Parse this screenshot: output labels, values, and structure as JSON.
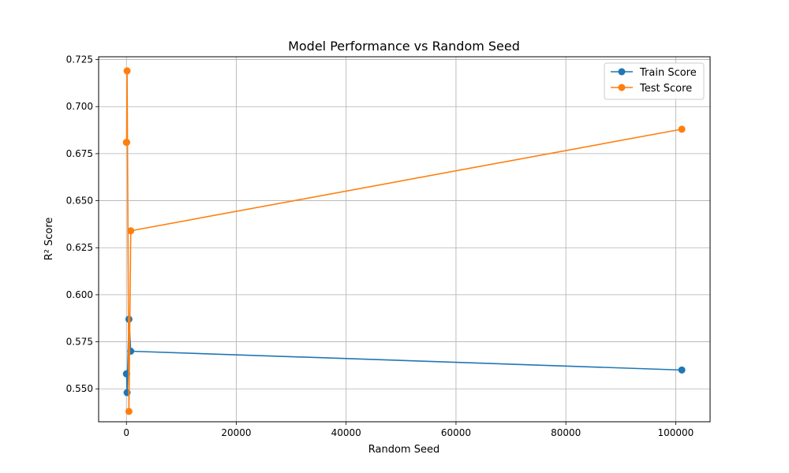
{
  "chart_data": {
    "type": "line",
    "title": "Model Performance vs Random Seed",
    "xlabel": "Random Seed",
    "ylabel": "R² Score",
    "xlim": [
      -5060,
      106260
    ],
    "ylim": [
      0.5325,
      0.7265
    ],
    "xticks": [
      0,
      20000,
      40000,
      60000,
      80000,
      100000
    ],
    "yticks": [
      0.55,
      0.575,
      0.6,
      0.625,
      0.65,
      0.675,
      0.7,
      0.725
    ],
    "grid": true,
    "legend_position": "top-right",
    "series": [
      {
        "name": "Train Score",
        "color": "#1f77b4",
        "x": [
          0,
          42,
          123,
          456,
          789,
          101112
        ],
        "y": [
          0.558,
          0.558,
          0.548,
          0.587,
          0.57,
          0.56
        ]
      },
      {
        "name": "Test Score",
        "color": "#ff7f0e",
        "x": [
          0,
          42,
          123,
          456,
          789,
          101112
        ],
        "y": [
          0.681,
          0.681,
          0.719,
          0.538,
          0.634,
          0.688
        ]
      }
    ]
  }
}
